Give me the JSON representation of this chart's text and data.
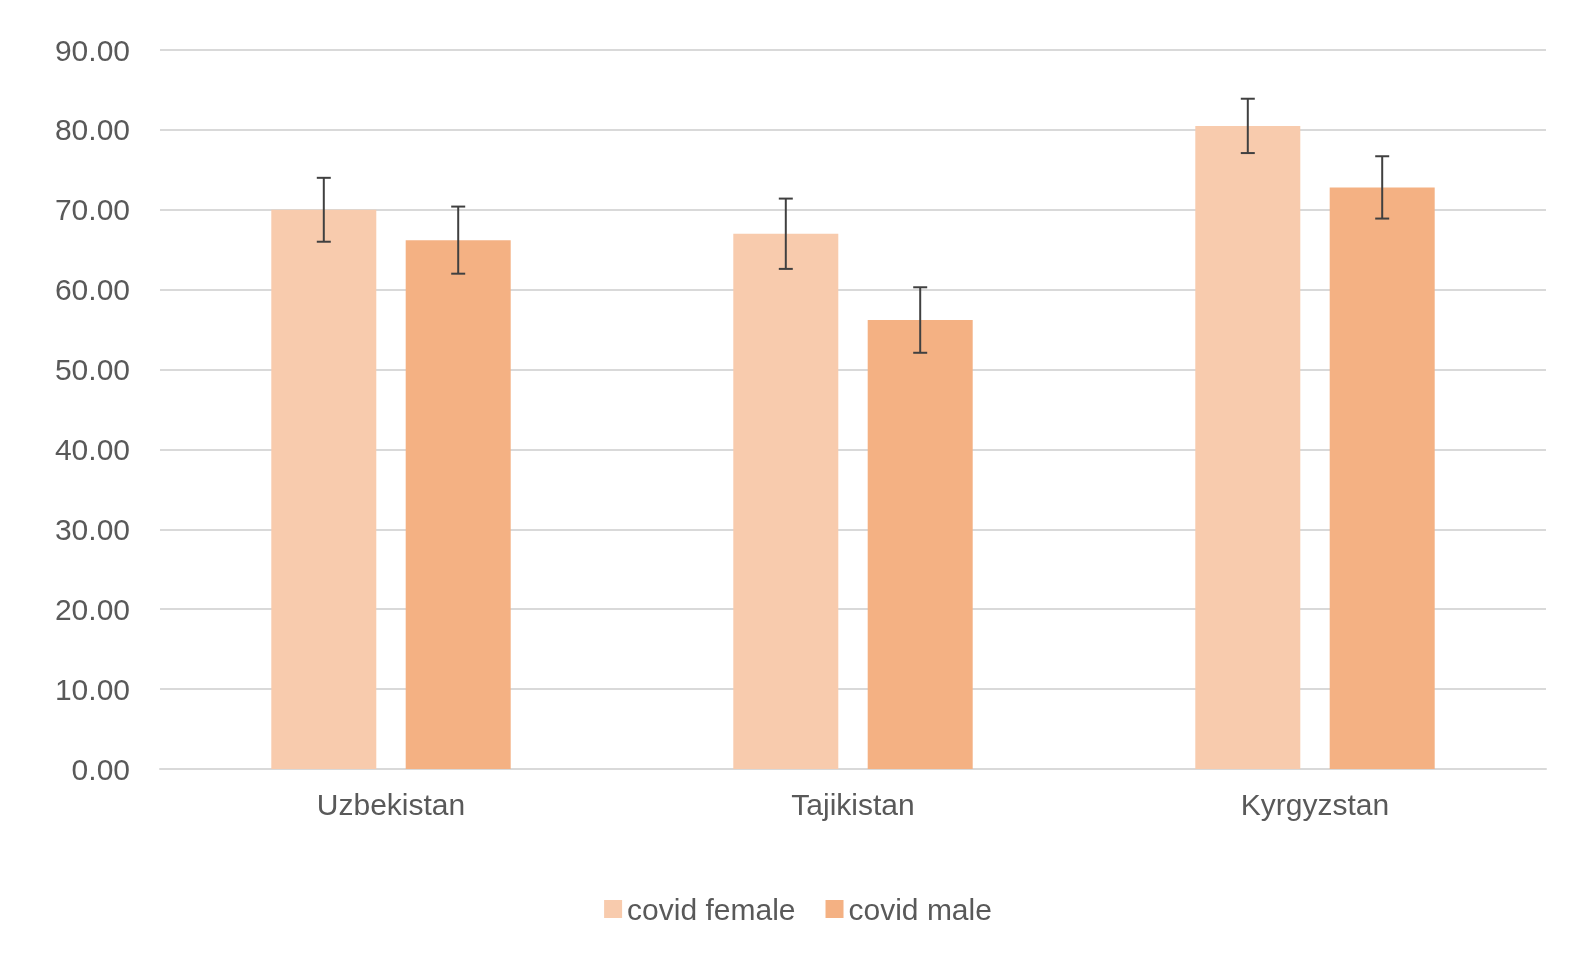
{
  "chart_data": {
    "type": "bar",
    "categories": [
      "Uzbekistan",
      "Tajikistan",
      "Kyrgyzstan"
    ],
    "series": [
      {
        "name": "covid female",
        "color": "#f8cbad",
        "values": [
          70.0,
          67.0,
          80.5
        ],
        "errors": [
          4.0,
          4.4,
          3.4
        ]
      },
      {
        "name": "covid male",
        "color": "#f4b183",
        "values": [
          66.2,
          56.2,
          72.8
        ],
        "errors": [
          4.2,
          4.1,
          3.9
        ]
      }
    ],
    "ylim": [
      0,
      90
    ],
    "yticks": [
      {
        "value": 0,
        "label": "0.00"
      },
      {
        "value": 10,
        "label": "10.00"
      },
      {
        "value": 20,
        "label": "20.00"
      },
      {
        "value": 30,
        "label": "30.00"
      },
      {
        "value": 40,
        "label": "40.00"
      },
      {
        "value": 50,
        "label": "50.00"
      },
      {
        "value": 60,
        "label": "60.00"
      },
      {
        "value": 70,
        "label": "70.00"
      },
      {
        "value": 80,
        "label": "80.00"
      },
      {
        "value": 90,
        "label": "90.00"
      }
    ],
    "grid": "y",
    "legend": "bottom"
  }
}
